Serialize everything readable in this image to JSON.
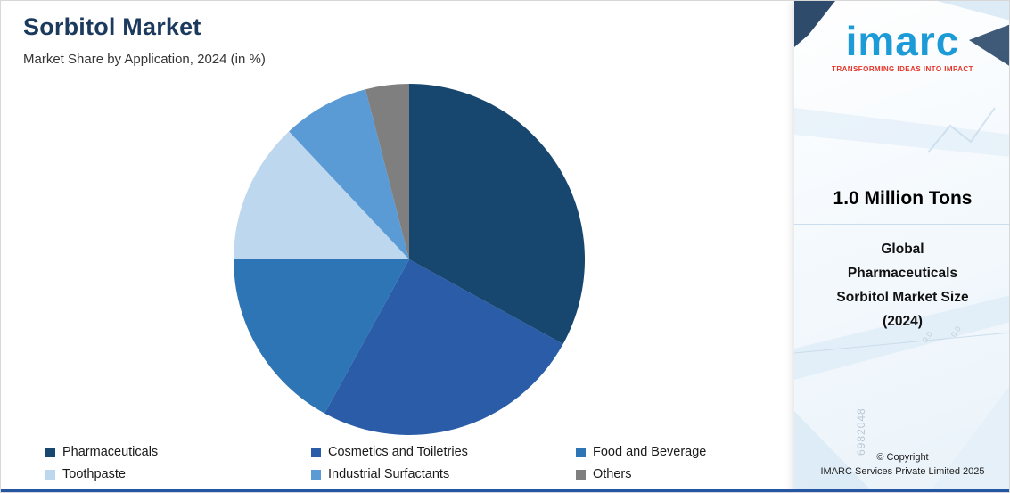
{
  "header": {
    "title": "Sorbitol Market",
    "subtitle": "Market Share by Application, 2024 (in %)"
  },
  "chart_data": {
    "type": "pie",
    "title": "Sorbitol Market — Market Share by Application, 2024 (in %)",
    "categories": [
      "Pharmaceuticals",
      "Cosmetics and Toiletries",
      "Food and Beverage",
      "Toothpaste",
      "Industrial Surfactants",
      "Others"
    ],
    "values": [
      33,
      25,
      17,
      13,
      8,
      4
    ],
    "colors": [
      "#17466f",
      "#2a5ca8",
      "#2e75b6",
      "#bdd7ee",
      "#5b9bd5",
      "#7f7f7f"
    ],
    "start_angle_deg": 0,
    "direction": "clockwise",
    "legend_position": "bottom",
    "units": "%"
  },
  "sidebar": {
    "logo_text": "imarc",
    "tagline": "TRANSFORMING IDEAS INTO IMPACT",
    "stat_value": "1.0 Million Tons",
    "stat_label_lines": [
      "Global",
      "Pharmaceuticals",
      "Sorbitol Market Size",
      "(2024)"
    ],
    "copyright_line1": "© Copyright",
    "copyright_line2": "IMARC Services Private Limited 2025",
    "decor_numbers": [
      "6982048",
      "0.0",
      "0.0"
    ]
  }
}
